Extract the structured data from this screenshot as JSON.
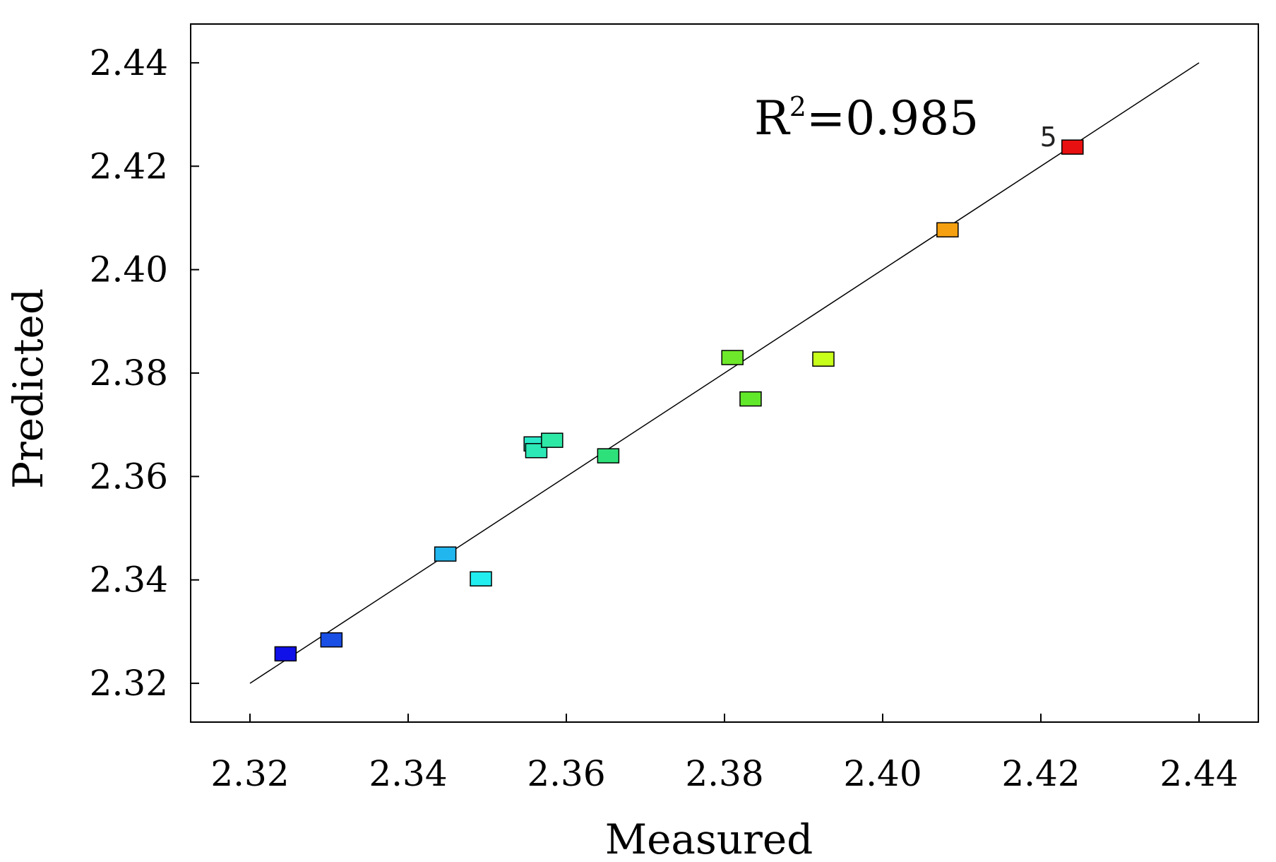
{
  "chart_data": {
    "type": "scatter",
    "title": "",
    "xlabel": "Measured",
    "ylabel": "Predicted",
    "xlim": [
      2.3125,
      2.4475
    ],
    "ylim": [
      2.3125,
      2.4475
    ],
    "xticks": [
      2.32,
      2.34,
      2.36,
      2.38,
      2.4,
      2.42,
      2.44
    ],
    "yticks": [
      2.32,
      2.34,
      2.36,
      2.38,
      2.4,
      2.42,
      2.44
    ],
    "x_tick_labels": [
      "2.32",
      "2.34",
      "2.36",
      "2.38",
      "2.40",
      "2.42",
      "2.44"
    ],
    "y_tick_labels": [
      "2.32",
      "2.34",
      "2.36",
      "2.38",
      "2.40",
      "2.42",
      "2.44"
    ],
    "grid": false,
    "reference_line": {
      "x": [
        2.32,
        2.44
      ],
      "y": [
        2.32,
        2.44
      ],
      "color": "#000000"
    },
    "annotation": {
      "base": "R",
      "superscript": "2",
      "value": "=0.985"
    },
    "points": [
      {
        "x": 2.3245,
        "y": 2.3257,
        "color": "#1010e8"
      },
      {
        "x": 2.3303,
        "y": 2.3284,
        "color": "#1a4fe6"
      },
      {
        "x": 2.3447,
        "y": 2.345,
        "color": "#22b6ee"
      },
      {
        "x": 2.3492,
        "y": 2.3402,
        "color": "#22eef0"
      },
      {
        "x": 2.356,
        "y": 2.3663,
        "color": "#2be8c8"
      },
      {
        "x": 2.3562,
        "y": 2.365,
        "color": "#2be8b6"
      },
      {
        "x": 2.3582,
        "y": 2.367,
        "color": "#2ee8a6"
      },
      {
        "x": 2.3653,
        "y": 2.364,
        "color": "#2ee07a"
      },
      {
        "x": 2.381,
        "y": 2.383,
        "color": "#6ee82a"
      },
      {
        "x": 2.3833,
        "y": 2.375,
        "color": "#62e82a"
      },
      {
        "x": 2.3925,
        "y": 2.3827,
        "color": "#c8ff1a"
      },
      {
        "x": 2.4082,
        "y": 2.4077,
        "color": "#f5a010"
      },
      {
        "x": 2.424,
        "y": 2.4237,
        "color": "#e81010",
        "label": "5"
      }
    ]
  }
}
